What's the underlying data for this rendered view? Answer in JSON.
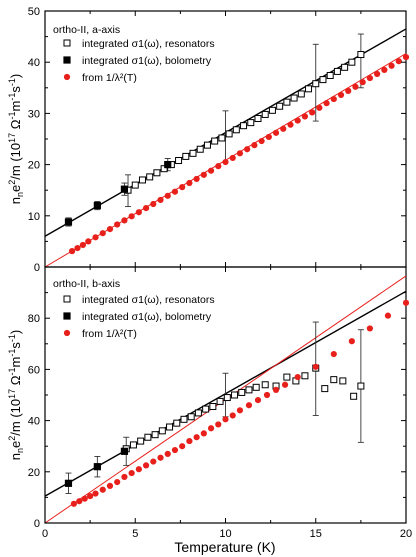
{
  "chart_data": [
    {
      "type": "scatter",
      "title": "ortho-II, a-axis",
      "xlabel": "Temperature (K)",
      "ylabel": "n_n e^2/m (10^17 Ω^-1 m^-1 s^-1)",
      "xlim": [
        0,
        20
      ],
      "ylim": [
        0,
        50
      ],
      "xticks": [
        0,
        5,
        10,
        15,
        20
      ],
      "yticks": [
        0,
        10,
        20,
        30,
        40,
        50
      ],
      "legend_position": "top-left",
      "series": [
        {
          "name": "integrated σ1(ω), resonators",
          "marker": "open-square",
          "color": "#000000",
          "x": [
            4.6,
            5.0,
            5.4,
            5.8,
            6.2,
            6.6,
            7.0,
            7.4,
            7.8,
            8.2,
            8.6,
            9.0,
            9.4,
            9.8,
            10.2,
            10.6,
            11.0,
            11.4,
            11.8,
            12.2,
            12.6,
            13.0,
            13.4,
            13.8,
            14.2,
            14.6,
            15.0,
            15.4,
            15.8,
            16.2,
            16.6,
            17.0,
            17.5
          ],
          "y": [
            15.0,
            16.0,
            17.0,
            17.6,
            18.4,
            19.2,
            20.0,
            20.8,
            21.6,
            22.2,
            23.0,
            23.8,
            24.6,
            25.2,
            26.0,
            26.8,
            27.6,
            28.2,
            29.0,
            29.8,
            30.6,
            31.4,
            32.2,
            33.0,
            33.8,
            34.8,
            35.8,
            36.6,
            37.4,
            38.2,
            39.0,
            40.0,
            41.5
          ],
          "error_bars": [
            {
              "x": 4.6,
              "low": 11.8,
              "high": 18.0
            },
            {
              "x": 6.8,
              "low": 18.8,
              "high": 21.2
            },
            {
              "x": 10.0,
              "low": 20.5,
              "high": 30.5
            },
            {
              "x": 15.0,
              "low": 28.5,
              "high": 43.5
            },
            {
              "x": 17.5,
              "low": 35.0,
              "high": 45.5
            }
          ]
        },
        {
          "name": "integrated σ1(ω), bolometry",
          "marker": "filled-square",
          "color": "#000000",
          "x": [
            1.3,
            2.9,
            4.4,
            6.8
          ],
          "y": [
            8.8,
            12.0,
            15.2,
            20.0
          ],
          "error_bars": [
            {
              "x": 1.3,
              "low": 8.0,
              "high": 9.6
            },
            {
              "x": 2.9,
              "low": 11.2,
              "high": 12.8
            },
            {
              "x": 4.4,
              "low": 14.0,
              "high": 16.4
            }
          ]
        },
        {
          "name": "from 1/λ²(T)",
          "marker": "filled-circle",
          "color": "#e8201c",
          "x": [
            1.5,
            1.8,
            2.1,
            2.4,
            2.8,
            3.2,
            3.6,
            4.0,
            4.4,
            4.8,
            5.2,
            5.6,
            6.0,
            6.4,
            6.8,
            7.2,
            7.6,
            8.0,
            8.4,
            8.8,
            9.2,
            9.6,
            10.0,
            10.4,
            10.8,
            11.2,
            11.6,
            12.0,
            12.4,
            12.8,
            13.2,
            13.6,
            14.0,
            14.4,
            14.8,
            15.2,
            15.6,
            16.0,
            16.4,
            16.8,
            17.2,
            17.6,
            18.0,
            18.4,
            18.8,
            19.2,
            19.6,
            20.0
          ],
          "y": [
            3.1,
            3.7,
            4.3,
            5.0,
            5.8,
            6.6,
            7.4,
            8.3,
            9.1,
            9.9,
            10.7,
            11.5,
            12.3,
            13.1,
            13.9,
            14.7,
            15.6,
            16.4,
            17.2,
            18.0,
            18.8,
            19.7,
            20.5,
            21.3,
            22.2,
            23.0,
            23.8,
            24.6,
            25.4,
            26.2,
            27.0,
            27.8,
            28.6,
            29.4,
            30.2,
            31.1,
            32.0,
            32.8,
            33.6,
            34.4,
            35.2,
            36.1,
            36.9,
            37.7,
            38.5,
            39.3,
            40.2,
            41.0
          ]
        }
      ],
      "fit_lines": [
        {
          "color": "#000000",
          "x": [
            0,
            20
          ],
          "y": [
            6.0,
            46.5
          ]
        },
        {
          "color": "#e8201c",
          "x": [
            0,
            20
          ],
          "y": [
            0.0,
            41.7
          ]
        }
      ]
    },
    {
      "type": "scatter",
      "title": "ortho-II, b-axis",
      "xlabel": "Temperature (K)",
      "ylabel": "n_n e^2/m (10^17 Ω^-1 m^-1 s^-1)",
      "xlim": [
        0,
        20
      ],
      "ylim": [
        0,
        100
      ],
      "xticks": [
        0,
        5,
        10,
        15,
        20
      ],
      "yticks": [
        0,
        20,
        40,
        60,
        80
      ],
      "legend_position": "top-left",
      "series": [
        {
          "name": "integrated σ1(ω), resonators",
          "marker": "open-square",
          "color": "#000000",
          "x": [
            4.5,
            4.9,
            5.3,
            5.7,
            6.1,
            6.5,
            6.9,
            7.3,
            7.7,
            8.1,
            8.5,
            8.9,
            9.3,
            9.7,
            10.1,
            10.5,
            10.9,
            11.3,
            11.7,
            12.2,
            12.8,
            13.4,
            13.9,
            14.4,
            15.0,
            15.5,
            16.0,
            16.5,
            17.1,
            17.5
          ],
          "y": [
            29.0,
            30.5,
            32.0,
            33.5,
            34.5,
            36.0,
            37.5,
            39.0,
            40.5,
            41.5,
            43.0,
            44.5,
            45.5,
            47.5,
            49.0,
            50.0,
            51.0,
            52.0,
            53.0,
            54.0,
            53.5,
            57.0,
            55.5,
            57.5,
            60.5,
            52.5,
            56.0,
            55.5,
            49.5,
            53.5
          ],
          "error_bars": [
            {
              "x": 4.5,
              "low": 22.5,
              "high": 33.5
            },
            {
              "x": 10.0,
              "low": 41.5,
              "high": 58.5
            },
            {
              "x": 15.0,
              "low": 42.0,
              "high": 78.5
            },
            {
              "x": 17.5,
              "low": 31.5,
              "high": 75.5
            }
          ]
        },
        {
          "name": "integrated σ1(ω), bolometry",
          "marker": "filled-square",
          "color": "#000000",
          "x": [
            1.3,
            2.9,
            4.4
          ],
          "y": [
            15.5,
            22.0,
            28.0
          ],
          "error_bars": [
            {
              "x": 1.3,
              "low": 11.5,
              "high": 19.5
            },
            {
              "x": 2.9,
              "low": 18.0,
              "high": 26.0
            }
          ]
        },
        {
          "name": "from 1/λ²(T)",
          "marker": "filled-circle",
          "color": "#e8201c",
          "x": [
            1.6,
            1.9,
            2.2,
            2.5,
            2.8,
            3.2,
            3.6,
            4.0,
            4.4,
            4.8,
            5.2,
            5.6,
            6.0,
            6.4,
            6.8,
            7.2,
            7.6,
            8.0,
            8.4,
            8.8,
            9.2,
            9.6,
            10.0,
            10.4,
            10.8,
            11.3,
            11.8,
            12.3,
            12.8,
            13.3,
            14.0,
            15.0,
            16.0,
            17.0,
            18.0,
            19.0,
            20.0
          ],
          "y": [
            7.5,
            8.5,
            9.5,
            10.5,
            11.5,
            13.0,
            14.5,
            16.0,
            18.0,
            19.5,
            21.0,
            22.5,
            24.0,
            25.5,
            27.0,
            28.5,
            30.0,
            32.0,
            33.5,
            35.0,
            37.0,
            38.5,
            40.5,
            42.0,
            44.0,
            46.0,
            48.0,
            50.0,
            52.0,
            54.0,
            57.0,
            61.0,
            66.0,
            71.0,
            76.0,
            81.0,
            86.0
          ]
        }
      ],
      "fit_lines": [
        {
          "color": "#000000",
          "x": [
            0,
            20
          ],
          "y": [
            10.5,
            90.5
          ]
        },
        {
          "color": "#e8201c",
          "x": [
            0,
            20
          ],
          "y": [
            0.0,
            96.5
          ]
        }
      ]
    }
  ]
}
